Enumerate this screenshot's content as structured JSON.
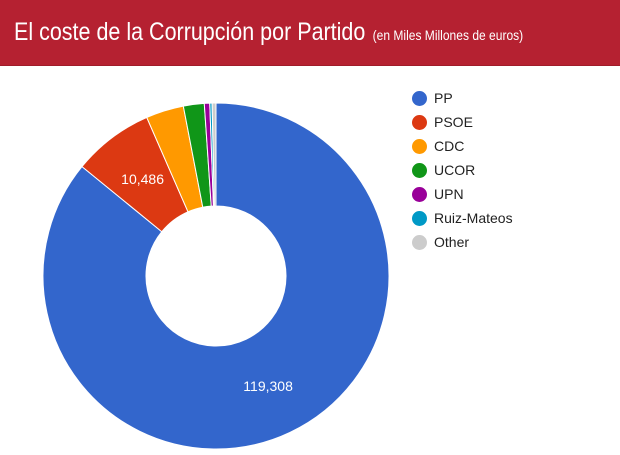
{
  "header": {
    "title": "El coste de la Corrupción por Partido",
    "subtitle": "(en Miles Millones de euros)",
    "background_color": "#b52131"
  },
  "chart_data": {
    "type": "pie",
    "donut": true,
    "title": "El coste de la Corrupción por Partido (en Miles Millones de euros)",
    "legend_position": "right",
    "series": [
      {
        "name": "PP",
        "value": 119308,
        "label": "119,308",
        "color": "#3366cc"
      },
      {
        "name": "PSOE",
        "value": 10486,
        "label": "10,486",
        "color": "#dc3912"
      },
      {
        "name": "CDC",
        "value": 4900,
        "label": "",
        "color": "#ff9900"
      },
      {
        "name": "UCOR",
        "value": 2700,
        "label": "",
        "color": "#109618"
      },
      {
        "name": "UPN",
        "value": 700,
        "label": "",
        "color": "#990099"
      },
      {
        "name": "Ruiz-Mateos",
        "value": 300,
        "label": "",
        "color": "#0099c6"
      },
      {
        "name": "Other",
        "value": 500,
        "label": "",
        "color": "#cccccc"
      }
    ]
  }
}
